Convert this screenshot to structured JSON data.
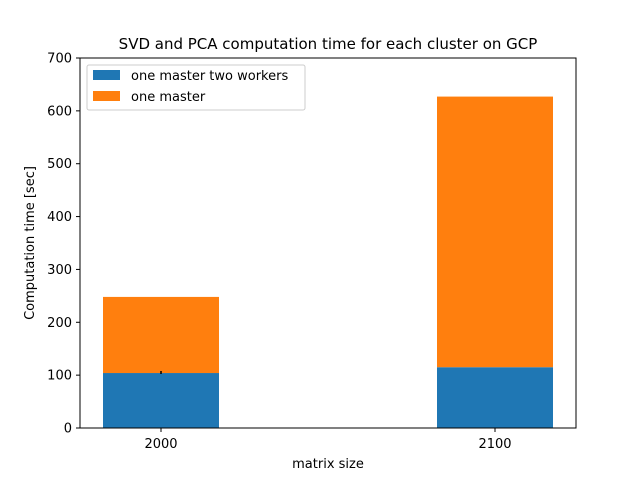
{
  "chart_data": {
    "type": "bar",
    "stacked": true,
    "title": "SVD and PCA computation time for each cluster on GCP",
    "xlabel": "matrix size",
    "ylabel": "Computation time [sec]",
    "categories": [
      "2000",
      "2100"
    ],
    "ylim": [
      0,
      700
    ],
    "yticks": [
      0,
      100,
      200,
      300,
      400,
      500,
      600,
      700
    ],
    "grid": false,
    "legend_position": "top-left",
    "series": [
      {
        "name": "one master two workers",
        "color": "#1f77b4",
        "values": [
          104,
          115
        ]
      },
      {
        "name": "one master",
        "color": "#ff7f0e",
        "values": [
          144,
          512
        ]
      }
    ],
    "error_bar": {
      "category_index": 0,
      "value": 105
    }
  }
}
